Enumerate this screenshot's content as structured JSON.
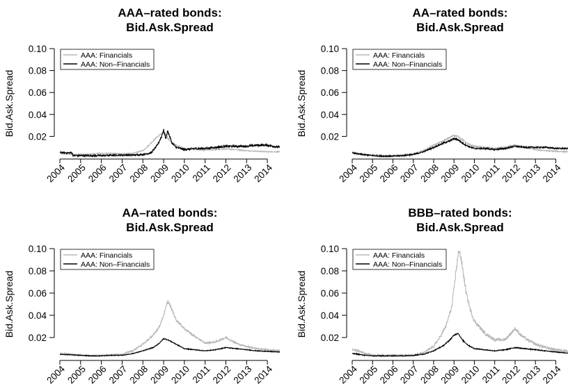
{
  "chart_data": [
    {
      "type": "line",
      "title": [
        "AAA–rated bonds:",
        "Bid.Ask.Spread"
      ],
      "ylabel": "Bid.Ask.Spread",
      "xlim": [
        2004.0,
        2014.6
      ],
      "ylim": [
        0.0,
        0.1
      ],
      "yticks": [
        0.02,
        0.04,
        0.06,
        0.08,
        0.1
      ],
      "ytick_labels": [
        "0.02",
        "0.04",
        "0.06",
        "0.08",
        "0.10"
      ],
      "xticks": [
        2004,
        2005,
        2006,
        2007,
        2008,
        2009,
        2010,
        2011,
        2012,
        2013,
        2014
      ],
      "xtick_labels": [
        "2004",
        "2005",
        "2006",
        "2007",
        "2008",
        "2009",
        "2010",
        "2011",
        "2012",
        "2013",
        "2014"
      ],
      "legend_position": "top-left",
      "series": [
        {
          "name": "AAA: Financials",
          "color": "#b8b8b8",
          "noise": 0.0006,
          "x": [
            2003.75,
            2004.2,
            2004.6,
            2005.0,
            2005.5,
            2006.0,
            2006.5,
            2007.0,
            2007.5,
            2008.0,
            2008.3,
            2008.6,
            2008.85,
            2009.0,
            2009.15,
            2009.3,
            2009.6,
            2010.0,
            2010.5,
            2011.0,
            2011.5,
            2012.0,
            2012.5,
            2013.0,
            2013.5,
            2014.0,
            2014.6
          ],
          "y": [
            0.005,
            0.004,
            0.0035,
            0.0035,
            0.004,
            0.0045,
            0.0045,
            0.0042,
            0.0045,
            0.007,
            0.012,
            0.018,
            0.022,
            0.024,
            0.02,
            0.016,
            0.012,
            0.009,
            0.008,
            0.0075,
            0.008,
            0.0085,
            0.008,
            0.007,
            0.0065,
            0.006,
            0.006
          ]
        },
        {
          "name": "AAA: Non–Financials",
          "color": "#000000",
          "noise": 0.0012,
          "x": [
            2003.75,
            2004.2,
            2004.6,
            2004.62,
            2005.0,
            2005.5,
            2006.0,
            2006.5,
            2007.0,
            2007.5,
            2008.0,
            2008.4,
            2008.7,
            2008.9,
            2009.0,
            2009.1,
            2009.2,
            2009.4,
            2009.6,
            2010.0,
            2010.5,
            2011.0,
            2011.5,
            2012.0,
            2012.5,
            2013.0,
            2013.5,
            2014.0,
            2014.6
          ],
          "y": [
            0.006,
            0.005,
            0.005,
            0.0025,
            0.0025,
            0.0025,
            0.0025,
            0.0028,
            0.003,
            0.003,
            0.0035,
            0.005,
            0.012,
            0.02,
            0.026,
            0.018,
            0.025,
            0.014,
            0.01,
            0.008,
            0.009,
            0.009,
            0.01,
            0.011,
            0.011,
            0.011,
            0.012,
            0.012,
            0.01
          ]
        }
      ]
    },
    {
      "type": "line",
      "title": [
        "AA–rated bonds:",
        "Bid.Ask.Spread"
      ],
      "ylabel": "Bid.Ask.Spread",
      "xlim": [
        2004.0,
        2014.6
      ],
      "ylim": [
        0.0,
        0.1
      ],
      "yticks": [
        0.02,
        0.04,
        0.06,
        0.08,
        0.1
      ],
      "ytick_labels": [
        "0.02",
        "0.04",
        "0.06",
        "0.08",
        "0.10"
      ],
      "xticks": [
        2004,
        2005,
        2006,
        2007,
        2008,
        2009,
        2010,
        2011,
        2012,
        2013,
        2014
      ],
      "xtick_labels": [
        "2004",
        "2005",
        "2006",
        "2007",
        "2008",
        "2009",
        "2010",
        "2011",
        "2012",
        "2013",
        "2014"
      ],
      "legend_position": "top-left",
      "series": [
        {
          "name": "AAA: Financials",
          "color": "#b8b8b8",
          "noise": 0.0007,
          "x": [
            2003.75,
            2004.3,
            2005.0,
            2005.5,
            2006.0,
            2006.5,
            2007.0,
            2007.5,
            2008.0,
            2008.5,
            2008.8,
            2009.0,
            2009.2,
            2009.4,
            2009.7,
            2010.0,
            2010.5,
            2011.0,
            2011.5,
            2012.0,
            2012.5,
            2013.0,
            2013.5,
            2014.0,
            2014.6
          ],
          "y": [
            0.006,
            0.004,
            0.003,
            0.0025,
            0.0025,
            0.003,
            0.004,
            0.007,
            0.012,
            0.016,
            0.019,
            0.021,
            0.02,
            0.017,
            0.013,
            0.011,
            0.01,
            0.009,
            0.01,
            0.012,
            0.01,
            0.008,
            0.007,
            0.0065,
            0.006
          ]
        },
        {
          "name": "AAA: Non–Financials",
          "color": "#000000",
          "noise": 0.0008,
          "x": [
            2003.75,
            2004.3,
            2005.0,
            2005.5,
            2006.0,
            2006.5,
            2007.0,
            2007.5,
            2008.0,
            2008.5,
            2008.8,
            2009.0,
            2009.2,
            2009.4,
            2009.7,
            2010.0,
            2010.5,
            2011.0,
            2011.5,
            2012.0,
            2012.5,
            2013.0,
            2013.5,
            2014.0,
            2014.6
          ],
          "y": [
            0.006,
            0.004,
            0.0025,
            0.002,
            0.002,
            0.0025,
            0.0035,
            0.006,
            0.01,
            0.014,
            0.016,
            0.018,
            0.017,
            0.014,
            0.011,
            0.009,
            0.009,
            0.008,
            0.009,
            0.011,
            0.01,
            0.01,
            0.01,
            0.009,
            0.009
          ]
        }
      ]
    },
    {
      "type": "line",
      "title": [
        "AA–rated bonds:",
        "Bid.Ask.Spread"
      ],
      "ylabel": "Bid.Ask.Spread",
      "xlim": [
        2004.0,
        2014.6
      ],
      "ylim": [
        0.0,
        0.1
      ],
      "yticks": [
        0.02,
        0.04,
        0.06,
        0.08,
        0.1
      ],
      "ytick_labels": [
        "0.02",
        "0.04",
        "0.06",
        "0.08",
        "0.10"
      ],
      "xticks": [
        2004,
        2005,
        2006,
        2007,
        2008,
        2009,
        2010,
        2011,
        2012,
        2013,
        2014
      ],
      "xtick_labels": [
        "2004",
        "2005",
        "2006",
        "2007",
        "2008",
        "2009",
        "2010",
        "2011",
        "2012",
        "2013",
        "2014"
      ],
      "legend_position": "top-left",
      "series": [
        {
          "name": "AAA: Financials",
          "color": "#b8b8b8",
          "noise": 0.0009,
          "x": [
            2003.75,
            2004.5,
            2005.0,
            2005.5,
            2006.0,
            2006.5,
            2007.0,
            2007.5,
            2008.0,
            2008.5,
            2008.8,
            2009.0,
            2009.2,
            2009.4,
            2009.6,
            2010.0,
            2010.5,
            2011.0,
            2011.5,
            2012.0,
            2012.3,
            2012.6,
            2013.0,
            2013.5,
            2014.0,
            2014.6
          ],
          "y": [
            0.006,
            0.005,
            0.004,
            0.0035,
            0.004,
            0.0045,
            0.005,
            0.008,
            0.014,
            0.022,
            0.03,
            0.04,
            0.053,
            0.045,
            0.036,
            0.028,
            0.021,
            0.015,
            0.016,
            0.02,
            0.017,
            0.014,
            0.012,
            0.01,
            0.009,
            0.008
          ]
        },
        {
          "name": "AAA: Non–Financials",
          "color": "#000000",
          "noise": 0.0004,
          "x": [
            2003.75,
            2004.5,
            2005.0,
            2005.5,
            2006.0,
            2006.5,
            2007.0,
            2007.5,
            2008.0,
            2008.5,
            2008.8,
            2009.0,
            2009.2,
            2009.4,
            2009.7,
            2010.0,
            2010.5,
            2011.0,
            2011.5,
            2012.0,
            2012.5,
            2013.0,
            2013.5,
            2014.0,
            2014.6
          ],
          "y": [
            0.005,
            0.0045,
            0.004,
            0.0035,
            0.0035,
            0.004,
            0.004,
            0.0055,
            0.008,
            0.011,
            0.015,
            0.019,
            0.018,
            0.016,
            0.013,
            0.01,
            0.009,
            0.008,
            0.009,
            0.011,
            0.01,
            0.009,
            0.008,
            0.0075,
            0.007
          ]
        }
      ]
    },
    {
      "type": "line",
      "title": [
        "BBB–rated bonds:",
        "Bid.Ask.Spread"
      ],
      "ylabel": "Bid.Ask.Spread",
      "xlim": [
        2004.0,
        2014.6
      ],
      "ylim": [
        0.0,
        0.1
      ],
      "yticks": [
        0.02,
        0.04,
        0.06,
        0.08,
        0.1
      ],
      "ytick_labels": [
        "0.02",
        "0.04",
        "0.06",
        "0.08",
        "0.10"
      ],
      "xticks": [
        2004,
        2005,
        2006,
        2007,
        2008,
        2009,
        2010,
        2011,
        2012,
        2013,
        2014
      ],
      "xtick_labels": [
        "2004",
        "2005",
        "2006",
        "2007",
        "2008",
        "2009",
        "2010",
        "2011",
        "2012",
        "2013",
        "2014"
      ],
      "legend_position": "top-left",
      "series": [
        {
          "name": "AAA: Financials",
          "color": "#b8b8b8",
          "noise": 0.0014,
          "x": [
            2003.75,
            2004.3,
            2004.6,
            2005.0,
            2005.5,
            2006.0,
            2006.5,
            2007.0,
            2007.5,
            2008.0,
            2008.3,
            2008.6,
            2008.9,
            2009.1,
            2009.25,
            2009.4,
            2009.6,
            2009.8,
            2010.0,
            2010.5,
            2011.0,
            2011.5,
            2012.0,
            2012.3,
            2012.6,
            2013.0,
            2013.5,
            2014.0,
            2014.6
          ],
          "y": [
            0.01,
            0.008,
            0.006,
            0.004,
            0.004,
            0.004,
            0.004,
            0.004,
            0.006,
            0.012,
            0.02,
            0.03,
            0.048,
            0.08,
            0.1,
            0.085,
            0.06,
            0.045,
            0.035,
            0.024,
            0.018,
            0.018,
            0.028,
            0.022,
            0.018,
            0.014,
            0.011,
            0.009,
            0.008
          ]
        },
        {
          "name": "AAA: Non–Financials",
          "color": "#000000",
          "noise": 0.0005,
          "x": [
            2003.75,
            2004.3,
            2004.6,
            2005.0,
            2005.5,
            2006.0,
            2006.5,
            2007.0,
            2007.5,
            2008.0,
            2008.5,
            2008.8,
            2009.0,
            2009.2,
            2009.4,
            2009.7,
            2010.0,
            2010.5,
            2011.0,
            2011.5,
            2012.0,
            2012.5,
            2013.0,
            2013.5,
            2014.0,
            2014.6
          ],
          "y": [
            0.006,
            0.005,
            0.004,
            0.0035,
            0.0035,
            0.0035,
            0.0035,
            0.004,
            0.005,
            0.008,
            0.013,
            0.018,
            0.022,
            0.024,
            0.018,
            0.013,
            0.01,
            0.009,
            0.008,
            0.009,
            0.011,
            0.01,
            0.009,
            0.008,
            0.007,
            0.006
          ]
        }
      ]
    }
  ]
}
